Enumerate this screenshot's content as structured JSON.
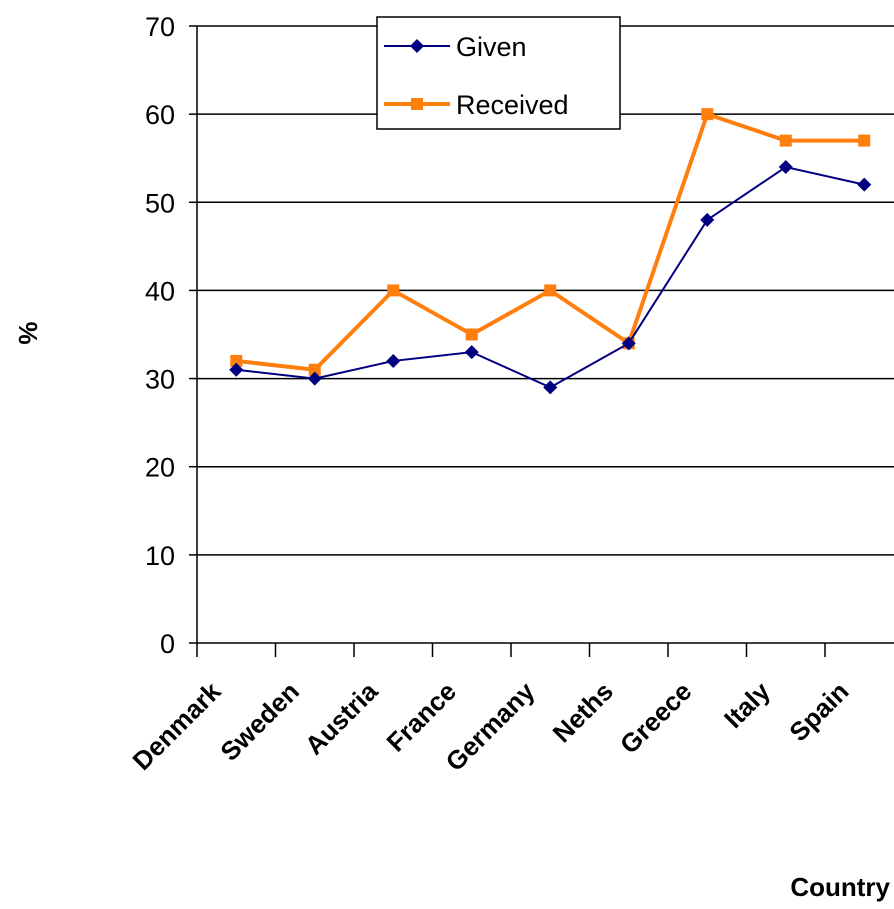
{
  "chart_data": {
    "type": "line",
    "title": "",
    "xlabel": "Country",
    "ylabel": "%",
    "ylim": [
      0,
      70
    ],
    "yticks": [
      0,
      10,
      20,
      30,
      40,
      50,
      60,
      70
    ],
    "grid": "horizontal",
    "legend_position": "top-center",
    "categories": [
      "Denmark",
      "Sweden",
      "Austria",
      "France",
      "Germany",
      "Neths",
      "Greece",
      "Italy",
      "Spain"
    ],
    "series": [
      {
        "name": "Given",
        "color": "#000080",
        "marker": "diamond",
        "values": [
          31,
          30,
          32,
          33,
          29,
          34,
          48,
          54,
          52
        ]
      },
      {
        "name": "Received",
        "color": "#FF7F0E",
        "marker": "square",
        "values": [
          32,
          31,
          40,
          35,
          40,
          34,
          60,
          57,
          57
        ]
      }
    ]
  }
}
